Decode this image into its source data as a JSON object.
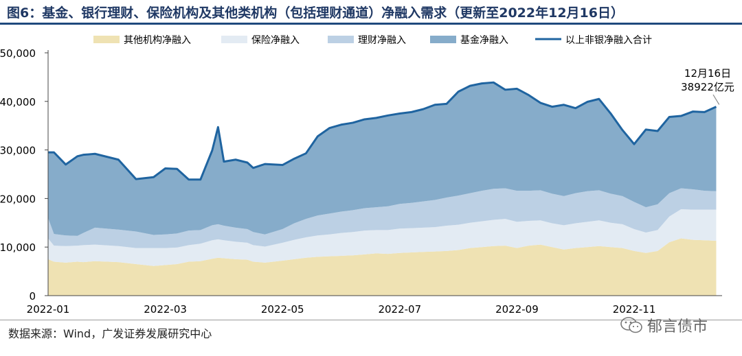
{
  "title": "图6：基金、银行理财、保险机构及其他类机构（包括理财通道）净融入需求（更新至2022年12月16日）",
  "source_text": "数据来源：Wind，广发证券发展研究中心",
  "watermark_text": "郁言债市",
  "chart_data": {
    "type": "area",
    "stacked": true,
    "ylim": [
      0,
      50000
    ],
    "yticks": [
      0,
      10000,
      20000,
      30000,
      40000,
      50000
    ],
    "ytick_labels": [
      "0",
      "10,000",
      "20,000",
      "30,000",
      "40,000",
      "50,000"
    ],
    "xlim": [
      0,
      11.5
    ],
    "xticks": [
      0,
      2,
      4,
      6,
      8,
      10
    ],
    "xtick_labels": [
      "2022-01",
      "2022-03",
      "2022-05",
      "2022-07",
      "2022-09",
      "2022-11"
    ],
    "colors": {
      "other": "#efe2b3",
      "insurance": "#e3ebf3",
      "wealth": "#bcd0e4",
      "fund": "#86acca",
      "total": "#1f64a0"
    },
    "legend": [
      {
        "key": "other",
        "label": "其他机构净融入"
      },
      {
        "key": "insurance",
        "label": "保险净融入"
      },
      {
        "key": "wealth",
        "label": "理财净融入"
      },
      {
        "key": "fund",
        "label": "基金净融入"
      },
      {
        "key": "total",
        "label": "以上非银净融入合计"
      }
    ],
    "x": [
      0,
      0.1,
      0.3,
      0.5,
      0.6,
      0.8,
      1.2,
      1.5,
      1.8,
      2.0,
      2.2,
      2.4,
      2.6,
      2.8,
      2.9,
      3.0,
      3.2,
      3.4,
      3.5,
      3.7,
      4.0,
      4.2,
      4.4,
      4.6,
      4.8,
      5.0,
      5.2,
      5.4,
      5.6,
      5.8,
      6.0,
      6.2,
      6.4,
      6.6,
      6.8,
      7.0,
      7.2,
      7.4,
      7.6,
      7.8,
      8.0,
      8.2,
      8.4,
      8.6,
      8.8,
      9.0,
      9.2,
      9.4,
      9.6,
      9.8,
      10.0,
      10.2,
      10.4,
      10.6,
      10.8,
      11.0,
      11.2,
      11.4
    ],
    "series": [
      {
        "name": "其他机构净融入",
        "key": "other",
        "values": [
          7500,
          7000,
          6800,
          7000,
          6900,
          7100,
          6900,
          6500,
          6100,
          6300,
          6500,
          7000,
          7100,
          7600,
          7800,
          7700,
          7500,
          7400,
          7000,
          6800,
          7200,
          7500,
          7800,
          8000,
          8100,
          8200,
          8300,
          8500,
          8700,
          8600,
          8800,
          8900,
          9000,
          9100,
          9200,
          9400,
          9800,
          10000,
          10200,
          10300,
          9800,
          10300,
          10500,
          10000,
          9500,
          9800,
          10000,
          10200,
          10000,
          9800,
          9200,
          8800,
          9200,
          11000,
          11800,
          11500,
          11400,
          11300
        ]
      },
      {
        "name": "保险净融入",
        "key": "insurance",
        "values": [
          4300,
          3300,
          3400,
          3300,
          3500,
          3400,
          3300,
          3300,
          3700,
          3500,
          3400,
          3400,
          3600,
          3800,
          3800,
          3700,
          3600,
          3500,
          3400,
          3300,
          3700,
          4000,
          4200,
          4400,
          4500,
          4700,
          4800,
          4900,
          4800,
          4900,
          5000,
          5000,
          5000,
          5000,
          5200,
          5200,
          5200,
          5300,
          5400,
          5500,
          5400,
          5100,
          5000,
          4900,
          5000,
          5100,
          5200,
          5300,
          5000,
          4900,
          4500,
          4200,
          4300,
          5300,
          6000,
          6200,
          6300,
          6400
        ]
      },
      {
        "name": "理财净融入",
        "key": "wealth",
        "values": [
          4200,
          2400,
          2200,
          2000,
          2500,
          3500,
          3400,
          3400,
          2700,
          2800,
          2900,
          3000,
          2800,
          3100,
          3100,
          3000,
          2900,
          2800,
          2700,
          2500,
          2800,
          3400,
          3800,
          4100,
          4300,
          4400,
          4500,
          4600,
          4700,
          4900,
          5100,
          5200,
          5400,
          5600,
          5800,
          6000,
          6100,
          6300,
          6400,
          6300,
          6400,
          6200,
          6200,
          6100,
          6000,
          6200,
          6300,
          6200,
          6000,
          5800,
          5600,
          5200,
          5300,
          4800,
          4300,
          4200,
          3900,
          3800
        ]
      },
      {
        "name": "基金净融入",
        "key": "fund",
        "values": [
          13500,
          16800,
          14600,
          16400,
          16100,
          15200,
          14400,
          10800,
          11900,
          13600,
          13300,
          10500,
          10400,
          15400,
          20000,
          13200,
          14000,
          13700,
          13200,
          14500,
          13200,
          13300,
          13500,
          16300,
          17600,
          17900,
          18000,
          18300,
          18400,
          18700,
          18600,
          18700,
          19000,
          19600,
          19300,
          21400,
          22100,
          22100,
          21900,
          20300,
          21000,
          19700,
          18000,
          17900,
          18800,
          17500,
          18400,
          18800,
          16500,
          13600,
          11900,
          16000,
          15100,
          15700,
          14900,
          16000,
          16200,
          17400
        ]
      }
    ],
    "annotation": {
      "line1": "12月16日",
      "line2": "38922亿元",
      "x": 11.45,
      "y": 38922
    }
  }
}
